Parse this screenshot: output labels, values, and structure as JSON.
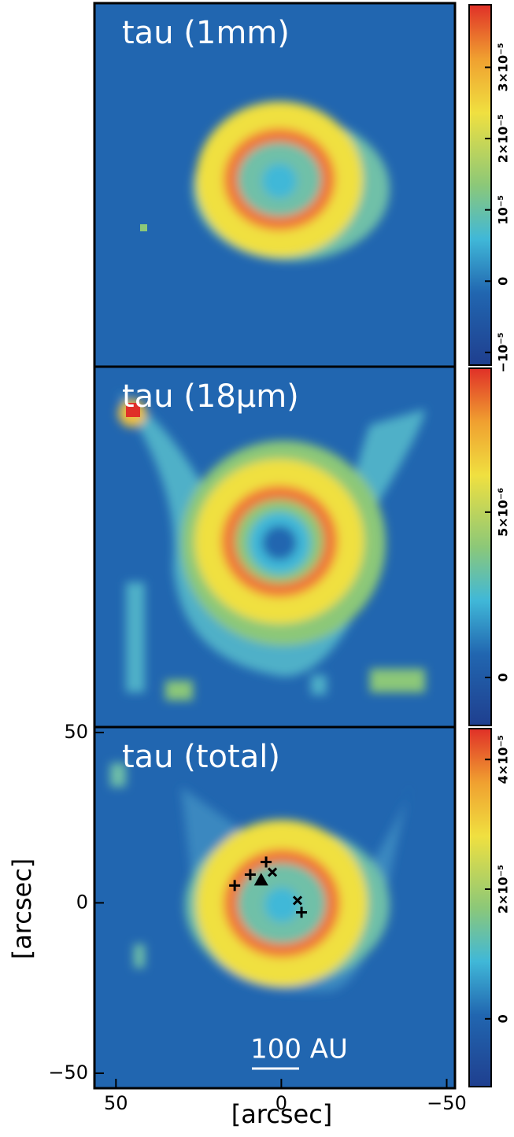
{
  "chart_data": [
    {
      "type": "heatmap",
      "title": "tau (1mm)",
      "colorbar": {
        "clim": [
          -1.2e-05,
          3.9e-05
        ],
        "ticks": [
          {
            "value": -1e-05,
            "label": "−10⁻⁵"
          },
          0,
          {
            "value": 1e-05,
            "label": "10⁻⁵"
          },
          {
            "value": 2e-05,
            "label": "2×10⁻⁵"
          },
          {
            "value": 3e-05,
            "label": "3×10⁻⁵"
          }
        ]
      }
    },
    {
      "type": "heatmap",
      "title": "tau (18μm)",
      "colorbar": {
        "clim": [
          -1.5e-06,
          9.4e-06
        ],
        "ticks": [
          0,
          {
            "value": 5e-06,
            "label": "5×10⁻⁶"
          }
        ]
      }
    },
    {
      "type": "heatmap",
      "title": "tau (total)",
      "colorbar": {
        "clim": [
          -1.07e-05,
          4.5e-05
        ],
        "ticks": [
          0,
          {
            "value": 2e-05,
            "label": "2×10⁻⁵"
          },
          {
            "value": 4e-05,
            "label": "4×10⁻⁵"
          }
        ]
      },
      "xlim": [
        56.5,
        -52.5
      ],
      "ylim": [
        -54.4,
        51.6
      ],
      "xticks": [
        {
          "value": 50,
          "label": "50"
        },
        0,
        {
          "value": -50,
          "label": "−50"
        }
      ],
      "yticks": [
        {
          "value": -50,
          "label": "−50"
        },
        0,
        50
      ],
      "xlabel": "[arcsec]",
      "ylabel": "[arcsec]",
      "annotation": "100 AU",
      "markers": {
        "plus": {
          "x": [
            14.1,
            9.4,
            4.6,
            -6.1
          ],
          "y": [
            5.1,
            8.3,
            12.0,
            -2.8
          ]
        },
        "cross": {
          "x": [
            2.7,
            -4.9
          ],
          "y": [
            9.0,
            0.7
          ]
        },
        "triangle": {
          "x": [
            6.1
          ],
          "y": [
            6.7
          ]
        }
      }
    }
  ]
}
